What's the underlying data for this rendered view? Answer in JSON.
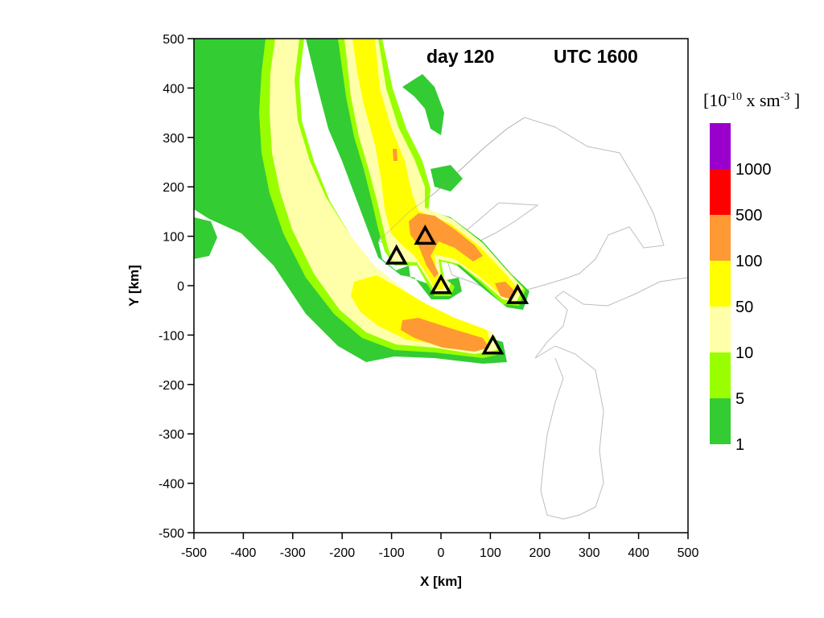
{
  "chart_data": {
    "type": "contour",
    "title_day": "day 120",
    "title_utc": "UTC 1600",
    "xlabel": "X [km]",
    "ylabel": "Y [km]",
    "xlim": [
      -500,
      500
    ],
    "ylim": [
      -500,
      500
    ],
    "x_ticks": [
      "-500",
      "-400",
      "-300",
      "-200",
      "-100",
      "0",
      "100",
      "200",
      "300",
      "400",
      "500"
    ],
    "y_ticks": [
      "500",
      "400",
      "300",
      "200",
      "100",
      "0",
      "-100",
      "-200",
      "-300",
      "-400",
      "-500"
    ],
    "grid": false,
    "colorbar": {
      "unit_base": "[10",
      "unit_exp1": "-10",
      "unit_mid": " x sm",
      "unit_exp2": "-3",
      "unit_end": " ]",
      "levels": [
        "1000",
        "500",
        "100",
        "50",
        "10",
        "5",
        "1"
      ],
      "colors": [
        "#9900cc",
        "#ff0000",
        "#ff9933",
        "#ffff00",
        "#ffffaa",
        "#99ff00",
        "#33cc33"
      ]
    },
    "sources": [
      {
        "x": -90,
        "y": 60
      },
      {
        "x": -32,
        "y": 100
      },
      {
        "x": 0,
        "y": 0
      },
      {
        "x": 155,
        "y": -20
      },
      {
        "x": 105,
        "y": -122
      }
    ]
  }
}
